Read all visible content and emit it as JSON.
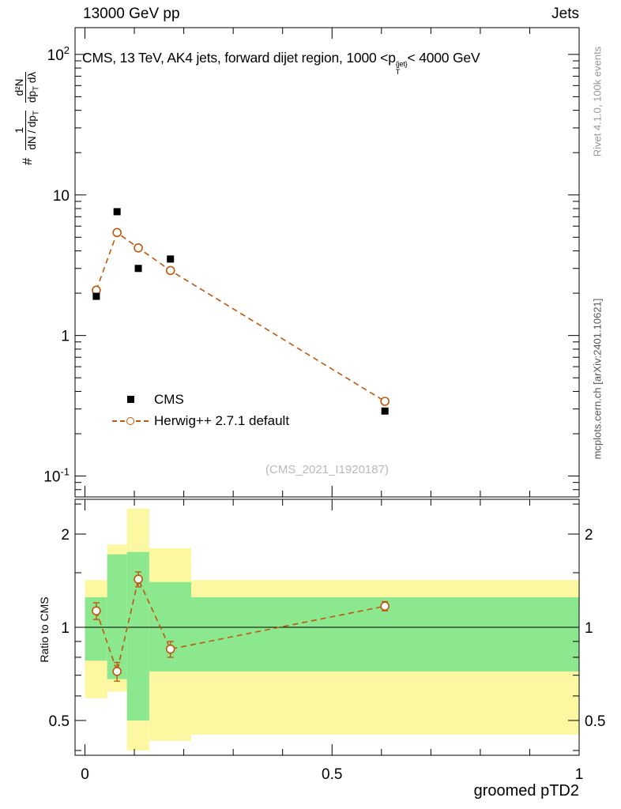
{
  "header": {
    "left": "13000 GeV pp",
    "right": "Jets"
  },
  "side": {
    "rivet": "Rivet 4.1.0, 100k events",
    "mcplots": "mcplots.cern.ch [arXiv:2401.10621]"
  },
  "legend": {
    "cms": "CMS",
    "herwig": "Herwig++ 2.7.1 default"
  },
  "labels": {
    "xlabel": "groomed pTD2",
    "ratio_ylabel": "Ratio to CMS",
    "watermark": "(CMS_2021_I1920187)"
  },
  "main": {
    "title_prefix": "CMS, 13 TeV, AK4 jets, forward dijet region, 1000 <p",
    "title_sup": "{jet}",
    "title_sub": "T",
    "title_suffix": "< 4000 GeV",
    "ylabel_hash": "#",
    "ylabel_f1_num": "1",
    "ylabel_f1_den": "dN / dp",
    "ylabel_f1_den_sub": "T",
    "ylabel_f2_num": "d²N",
    "ylabel_f2_den_a": "dp",
    "ylabel_f2_den_sub": "T",
    "ylabel_f2_den_b": " dλ"
  },
  "colors": {
    "herwig": "#c0570c",
    "cms": "#000000",
    "band_yellow": "#fcf7a1",
    "band_green": "#8be88f",
    "watermark": "#b9b9b9"
  },
  "chart_data": [
    {
      "id": "main-panel",
      "type": "scatter",
      "title": "CMS, 13 TeV, AK4 jets, forward dijet region, 1000 < pT^{jet} < 4000 GeV",
      "xlabel": "groomed pTD2",
      "ylabel": "# 1/(dN/dpT) d²N/(dpT dλ)",
      "legend_position": "left-middle",
      "grid": false,
      "x_axis": {
        "lim": [
          -0.02,
          1.0
        ],
        "ticks": [
          {
            "v": 0,
            "label": "0"
          },
          {
            "v": 0.5,
            "label": "0.5"
          },
          {
            "v": 1,
            "label": "1"
          }
        ]
      },
      "y_axis": {
        "scale": "log",
        "lim": [
          0.071,
          155
        ],
        "ticks": [
          {
            "v": 100,
            "base": "10",
            "exp": "2"
          },
          {
            "v": 10,
            "base": "10",
            "exp": ""
          },
          {
            "v": 1,
            "base": "1",
            "exp": ""
          },
          {
            "v": 0.1,
            "base": "10",
            "exp": "-1"
          }
        ]
      },
      "series": [
        {
          "name": "CMS",
          "marker": "filled-square",
          "color": "#000000",
          "x": [
            0.023,
            0.065,
            0.108,
            0.173,
            0.607
          ],
          "y": [
            1.9,
            7.6,
            3.0,
            3.5,
            0.29
          ]
        },
        {
          "name": "Herwig++ 2.7.1 default",
          "marker": "open-circle",
          "line": "dashed",
          "color": "#c0570c",
          "x": [
            0.023,
            0.065,
            0.108,
            0.173,
            0.607
          ],
          "y": [
            2.1,
            5.4,
            4.2,
            2.9,
            0.34
          ]
        }
      ]
    },
    {
      "id": "ratio-panel",
      "type": "ratio",
      "ylabel": "Ratio to CMS",
      "reference_line": 1,
      "y_axis": {
        "scale": "log",
        "lim": [
          0.386,
          2.59
        ],
        "ticks": [
          {
            "v": 0.5,
            "label": "0.5"
          },
          {
            "v": 1,
            "label": "1"
          },
          {
            "v": 2,
            "label": "2"
          }
        ]
      },
      "bands": [
        {
          "x0": 0,
          "x1": 0.045,
          "yellow": [
            0.59,
            1.42
          ],
          "green": [
            0.78,
            1.25
          ]
        },
        {
          "x0": 0.045,
          "x1": 0.085,
          "yellow": [
            0.62,
            1.85
          ],
          "green": [
            0.68,
            1.72
          ]
        },
        {
          "x0": 0.085,
          "x1": 0.13,
          "yellow": [
            0.4,
            2.42
          ],
          "green": [
            0.5,
            1.75
          ]
        },
        {
          "x0": 0.13,
          "x1": 0.215,
          "yellow": [
            0.43,
            1.8
          ],
          "green": [
            0.72,
            1.4
          ]
        },
        {
          "x0": 0.215,
          "x1": 1.0,
          "yellow": [
            0.45,
            1.42
          ],
          "green": [
            0.72,
            1.25
          ]
        }
      ],
      "series": [
        {
          "name": "Herwig++ 2.7.1 default / CMS",
          "marker": "open-circle",
          "line": "dashed",
          "color": "#c0570c",
          "x": [
            0.023,
            0.065,
            0.108,
            0.173,
            0.607
          ],
          "y": [
            1.13,
            0.72,
            1.43,
            0.85,
            1.17
          ],
          "yerr": [
            0.07,
            0.05,
            0.08,
            0.05,
            0.04
          ]
        }
      ]
    }
  ]
}
